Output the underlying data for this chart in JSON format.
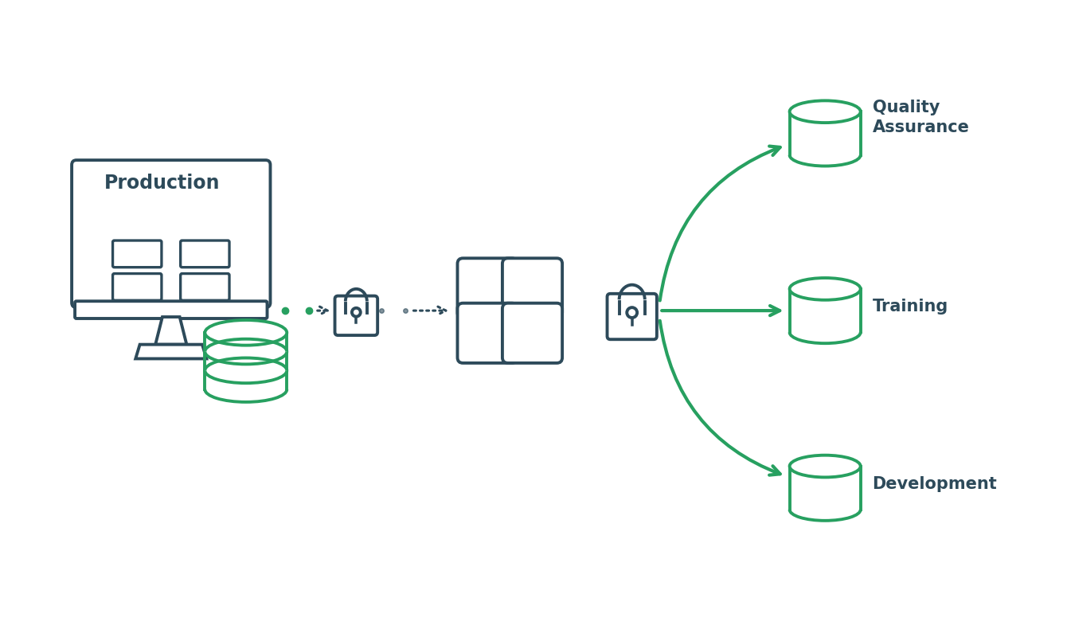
{
  "bg_color": "#ffffff",
  "dark_color": "#2d4a5a",
  "green_color": "#27a060",
  "label_production": "Production",
  "label_qa": "Quality\nAssurance",
  "label_training": "Training",
  "label_dev": "Development",
  "figsize": [
    13.4,
    8.0
  ],
  "dpi": 100
}
